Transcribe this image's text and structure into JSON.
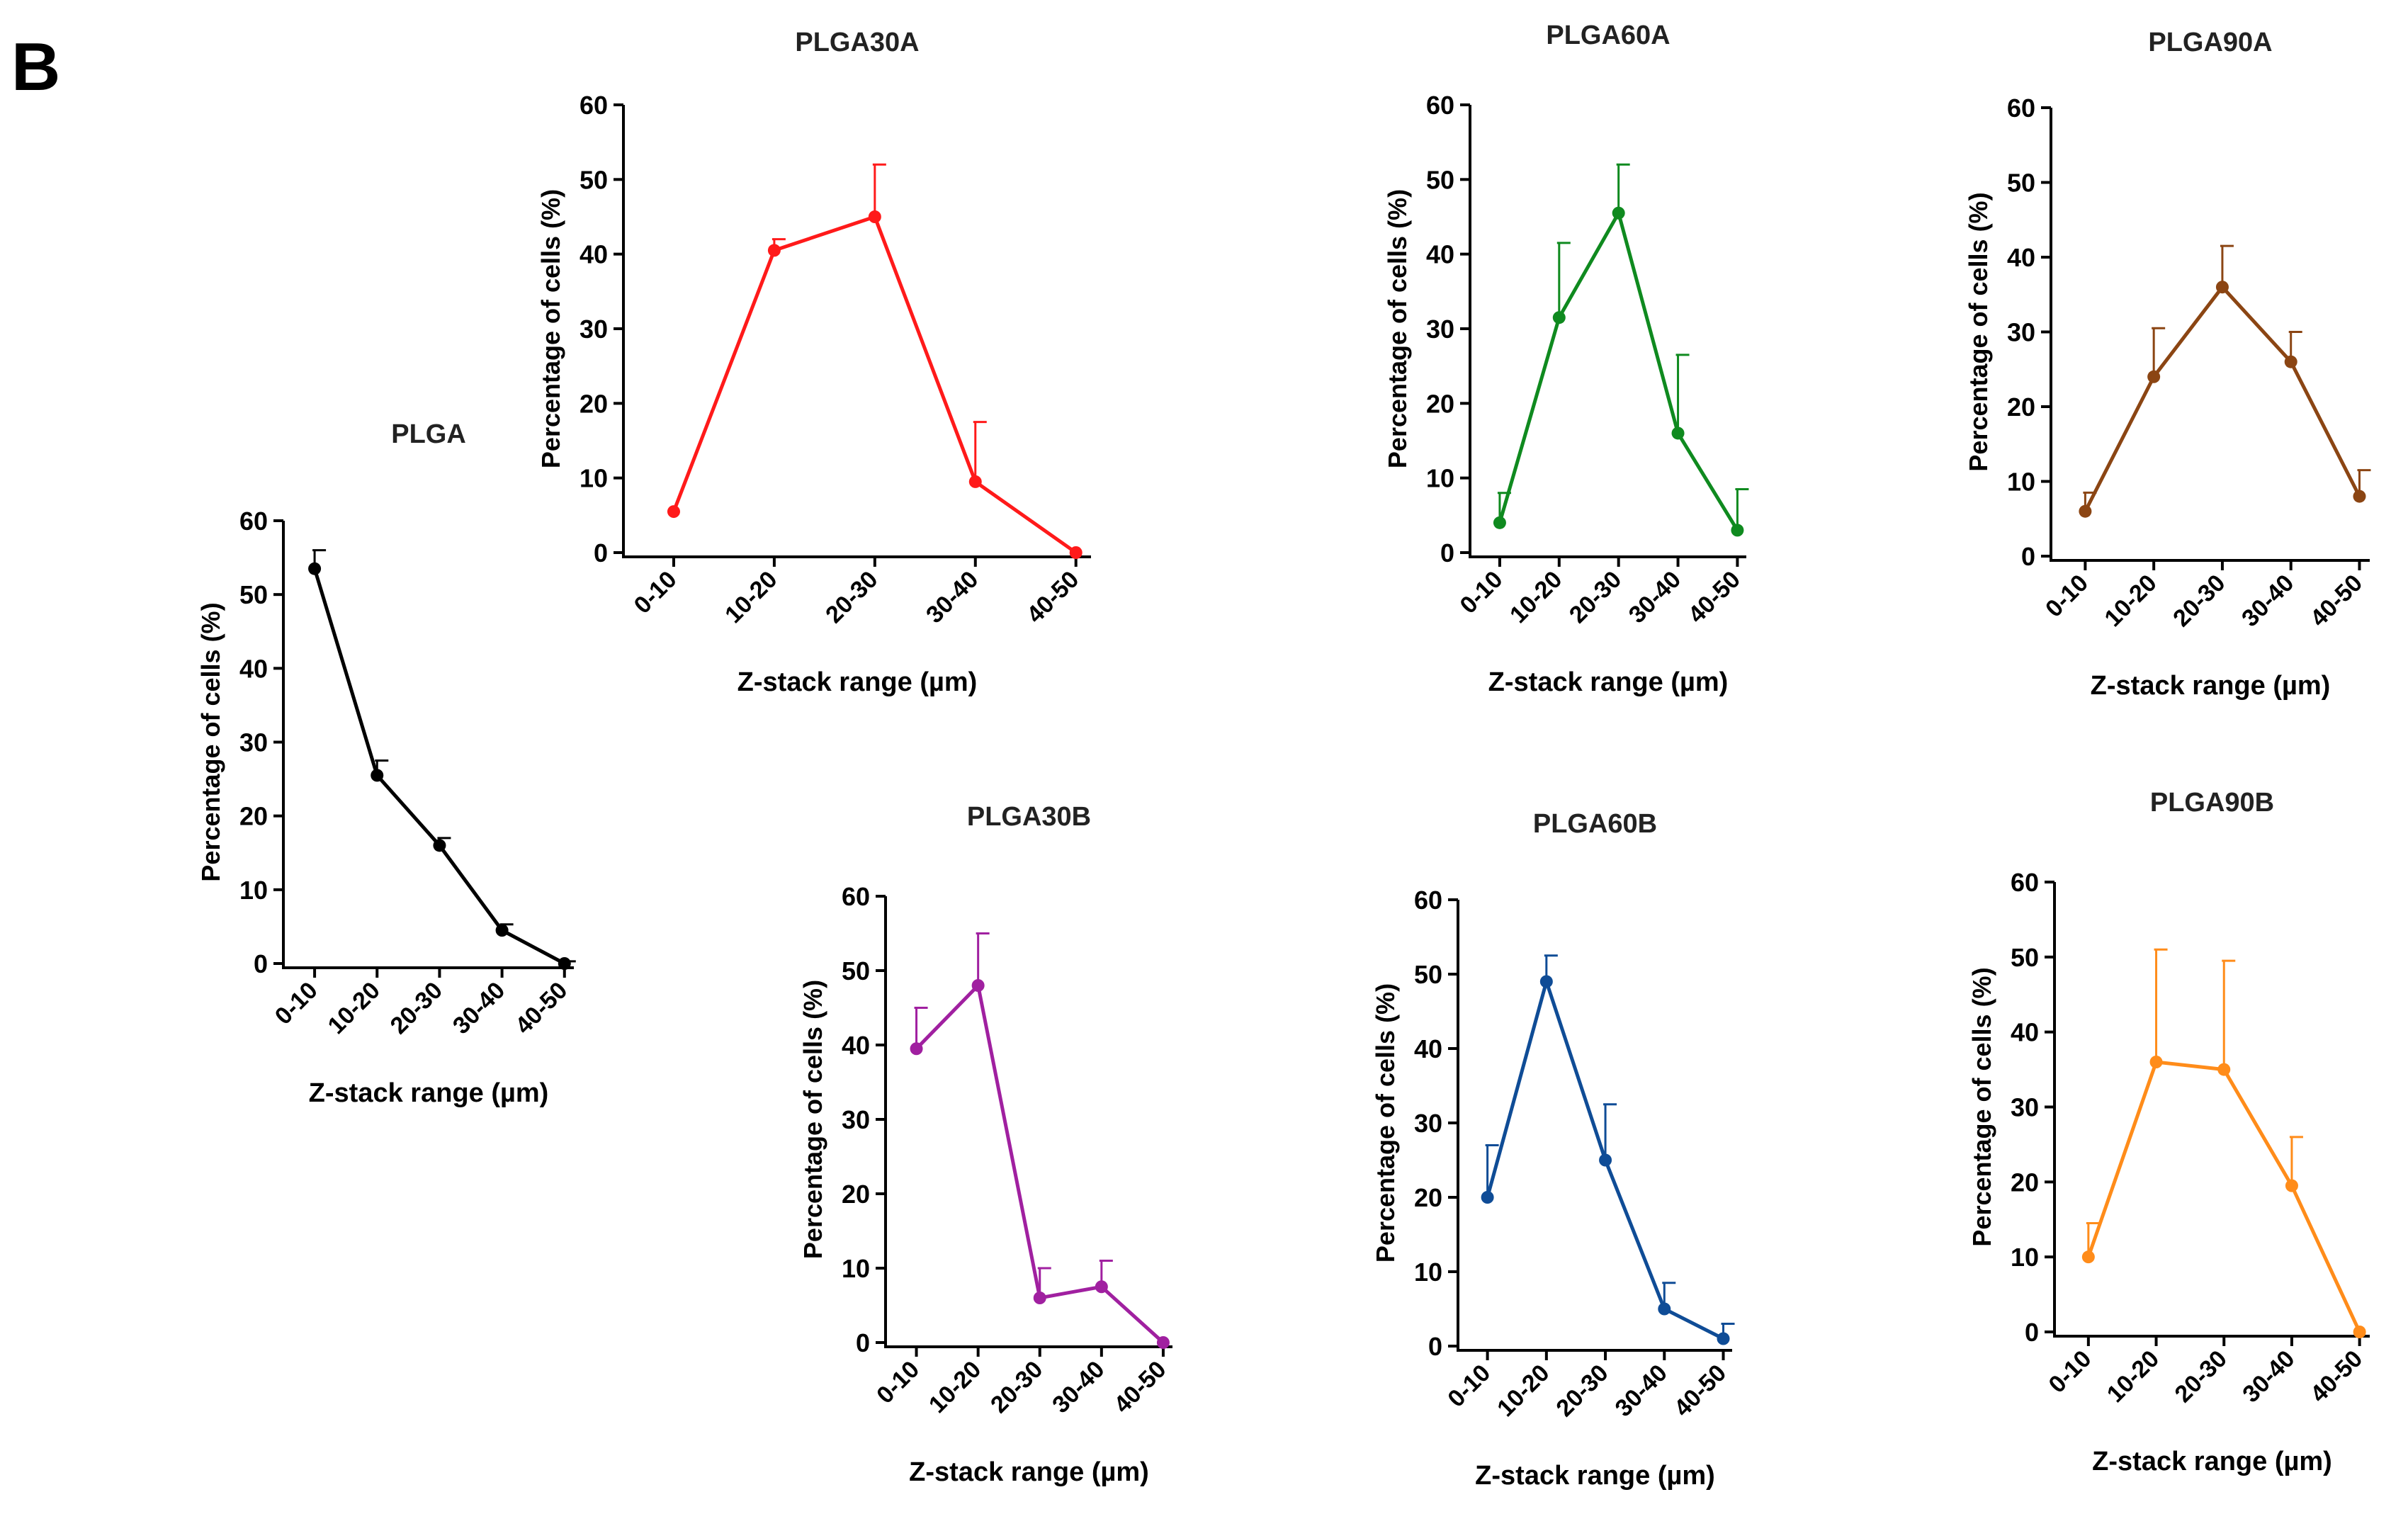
{
  "panel_label": "B",
  "chart_data": [
    {
      "type": "line",
      "title": "PLGA",
      "color": "#000000",
      "categories": [
        "0-10",
        "10-20",
        "20-30",
        "30-40",
        "40-50"
      ],
      "values": [
        53.5,
        25.5,
        16,
        4.5,
        0
      ],
      "error_upper": [
        56,
        27.5,
        17,
        5.3,
        0.3
      ],
      "xlabel": "Z-stack range (µm)",
      "ylabel": "Percentage of cells (%)",
      "ylim": [
        0,
        60
      ],
      "yticks": [
        "0",
        "10",
        "20",
        "30",
        "40",
        "50",
        "60"
      ]
    },
    {
      "type": "line",
      "title": "PLGA30A",
      "color": "#ff1a1a",
      "categories": [
        "0-10",
        "10-20",
        "20-30",
        "30-40",
        "40-50"
      ],
      "values": [
        5.5,
        40.5,
        45,
        9.5,
        0
      ],
      "error_upper": [
        5.5,
        42,
        52,
        17.5,
        0
      ],
      "xlabel": "Z-stack range (µm)",
      "ylabel": "Percentage of cells (%)",
      "ylim": [
        0,
        60
      ],
      "yticks": [
        "0",
        "10",
        "20",
        "30",
        "40",
        "50",
        "60"
      ]
    },
    {
      "type": "line",
      "title": "PLGA60A",
      "color": "#0f8a1f",
      "categories": [
        "0-10",
        "10-20",
        "20-30",
        "30-40",
        "40-50"
      ],
      "values": [
        4,
        31.5,
        45.5,
        16,
        3
      ],
      "error_upper": [
        8,
        41.5,
        52,
        26.5,
        8.5
      ],
      "xlabel": "Z-stack range (µm)",
      "ylabel": "Percentage of cells (%)",
      "ylim": [
        0,
        60
      ],
      "yticks": [
        "0",
        "10",
        "20",
        "30",
        "40",
        "50",
        "60"
      ]
    },
    {
      "type": "line",
      "title": "PLGA90A",
      "color": "#8b4513",
      "categories": [
        "0-10",
        "10-20",
        "20-30",
        "30-40",
        "40-50"
      ],
      "values": [
        6,
        24,
        36,
        26,
        8
      ],
      "error_upper": [
        8.5,
        30.5,
        41.5,
        30,
        11.5
      ],
      "xlabel": "Z-stack range (µm)",
      "ylabel": "Percentage of cells (%)",
      "ylim": [
        0,
        60
      ],
      "yticks": [
        "0",
        "10",
        "20",
        "30",
        "40",
        "50",
        "60"
      ]
    },
    {
      "type": "line",
      "title": "PLGA30B",
      "color": "#a020a0",
      "categories": [
        "0-10",
        "10-20",
        "20-30",
        "30-40",
        "40-50"
      ],
      "values": [
        39.5,
        48,
        6,
        7.5,
        0
      ],
      "error_upper": [
        45,
        55,
        10,
        11,
        0
      ],
      "xlabel": "Z-stack range (µm)",
      "ylabel": "Percentage of cells (%)",
      "ylim": [
        0,
        60
      ],
      "yticks": [
        "0",
        "10",
        "20",
        "30",
        "40",
        "50",
        "60"
      ]
    },
    {
      "type": "line",
      "title": "PLGA60B",
      "color": "#0f4c96",
      "categories": [
        "0-10",
        "10-20",
        "20-30",
        "30-40",
        "40-50"
      ],
      "values": [
        20,
        49,
        25,
        5,
        1
      ],
      "error_upper": [
        27,
        52.5,
        32.5,
        8.5,
        3
      ],
      "xlabel": "Z-stack range (µm)",
      "ylabel": "Percentage of cells (%)",
      "ylim": [
        0,
        60
      ],
      "yticks": [
        "0",
        "10",
        "20",
        "30",
        "40",
        "50",
        "60"
      ]
    },
    {
      "type": "line",
      "title": "PLGA90B",
      "color": "#ff8c1a",
      "categories": [
        "0-10",
        "10-20",
        "20-30",
        "30-40",
        "40-50"
      ],
      "values": [
        10,
        36,
        35,
        19.5,
        0
      ],
      "error_upper": [
        14.5,
        51,
        49.5,
        26,
        0
      ],
      "xlabel": "Z-stack range (µm)",
      "ylabel": "Percentage of cells (%)",
      "ylim": [
        0,
        60
      ],
      "yticks": [
        "0",
        "10",
        "20",
        "30",
        "40",
        "50",
        "60"
      ]
    }
  ]
}
